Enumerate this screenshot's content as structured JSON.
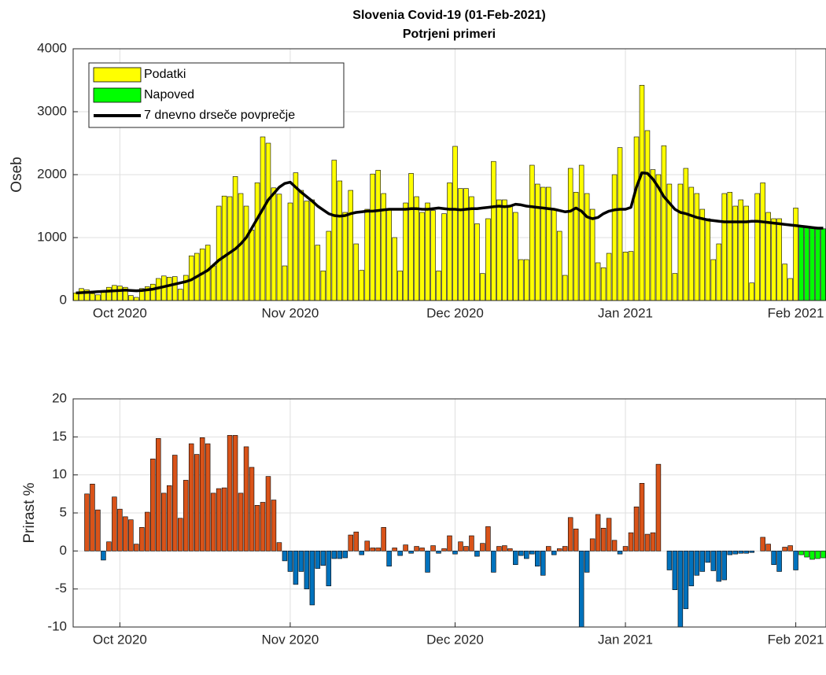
{
  "chart_data": [
    {
      "type": "bar",
      "title": "Slovenia Covid-19 (01-Feb-2021)",
      "subtitle": "Potrjeni primeri",
      "ylabel": "Oseb",
      "categories": [
        null,
        null,
        null,
        null,
        null,
        null,
        null,
        null,
        "Oct 2020",
        null,
        null,
        null,
        null,
        null,
        null,
        null,
        null,
        null,
        null,
        null,
        null,
        null,
        null,
        null,
        null,
        null,
        null,
        null,
        null,
        null,
        null,
        null,
        null,
        null,
        null,
        null,
        null,
        null,
        null,
        "Nov 2020",
        null,
        null,
        null,
        null,
        null,
        null,
        null,
        null,
        null,
        null,
        null,
        null,
        null,
        null,
        null,
        null,
        null,
        null,
        null,
        null,
        null,
        null,
        null,
        null,
        null,
        null,
        null,
        null,
        null,
        "Dec 2020",
        null,
        null,
        null,
        null,
        null,
        null,
        null,
        null,
        null,
        null,
        null,
        null,
        null,
        null,
        null,
        null,
        null,
        null,
        null,
        null,
        null,
        null,
        null,
        null,
        null,
        null,
        null,
        null,
        null,
        null,
        "Jan 2021",
        null,
        null,
        null,
        null,
        null,
        null,
        null,
        null,
        null,
        null,
        null,
        null,
        null,
        null,
        null,
        null,
        null,
        null,
        null,
        null,
        null,
        null,
        null,
        null,
        null,
        null,
        null,
        null,
        null,
        null,
        "Feb 2021",
        null,
        null,
        null,
        null,
        null
      ],
      "series": [
        {
          "name": "Podatki",
          "color": "#FFFF00",
          "values": [
            120,
            190,
            170,
            110,
            90,
            150,
            210,
            240,
            230,
            210,
            80,
            50,
            190,
            220,
            260,
            350,
            390,
            370,
            380,
            180,
            400,
            710,
            750,
            820,
            880,
            550,
            1500,
            1660,
            1650,
            1970,
            1700,
            1500,
            1120,
            1870,
            2600,
            2500,
            1790,
            1690,
            550,
            1550,
            2030,
            1750,
            1580,
            1600,
            880,
            470,
            1100,
            2230,
            1900,
            1400,
            1750,
            900,
            480,
            1450,
            2010,
            2070,
            1700,
            1450,
            1000,
            470,
            1550,
            2020,
            1650,
            1400,
            1550,
            1430,
            470,
            1380,
            1870,
            2450,
            1780,
            1780,
            1650,
            1220,
            430,
            1300,
            2210,
            1600,
            1600,
            1500,
            1400,
            650,
            650,
            2150,
            1850,
            1800,
            1800,
            1450,
            1100,
            400,
            2100,
            1720,
            2150,
            1700,
            1450,
            600,
            520,
            750,
            2000,
            2430,
            770,
            780,
            2600,
            3420,
            2700,
            2080,
            2000,
            2460,
            1850,
            430,
            1850,
            2100,
            1800,
            1700,
            1450,
            1300,
            650,
            900,
            1700,
            1720,
            1500,
            1600,
            1500,
            280,
            1700,
            1870,
            1400,
            1300,
            1300,
            580,
            350,
            1470,
            null,
            null,
            null,
            null,
            null
          ]
        },
        {
          "name": "Napoved",
          "color": "#00FF00",
          "values": [
            null,
            null,
            null,
            null,
            null,
            null,
            null,
            null,
            null,
            null,
            null,
            null,
            null,
            null,
            null,
            null,
            null,
            null,
            null,
            null,
            null,
            null,
            null,
            null,
            null,
            null,
            null,
            null,
            null,
            null,
            null,
            null,
            null,
            null,
            null,
            null,
            null,
            null,
            null,
            null,
            null,
            null,
            null,
            null,
            null,
            null,
            null,
            null,
            null,
            null,
            null,
            null,
            null,
            null,
            null,
            null,
            null,
            null,
            null,
            null,
            null,
            null,
            null,
            null,
            null,
            null,
            null,
            null,
            null,
            null,
            null,
            null,
            null,
            null,
            null,
            null,
            null,
            null,
            null,
            null,
            null,
            null,
            null,
            null,
            null,
            null,
            null,
            null,
            null,
            null,
            null,
            null,
            null,
            null,
            null,
            null,
            null,
            null,
            null,
            null,
            null,
            null,
            null,
            null,
            null,
            null,
            null,
            null,
            null,
            null,
            null,
            null,
            null,
            null,
            null,
            null,
            null,
            null,
            null,
            null,
            null,
            null,
            null,
            null,
            null,
            null,
            null,
            null,
            null,
            null,
            null,
            null,
            1180,
            1170,
            1160,
            1150,
            1140
          ]
        },
        {
          "name": "7 dnevno drseče povprečje",
          "type": "line",
          "color": "#000000",
          "values": [
            120,
            125,
            130,
            135,
            140,
            145,
            150,
            155,
            160,
            165,
            160,
            155,
            160,
            170,
            180,
            200,
            220,
            240,
            260,
            280,
            300,
            330,
            380,
            430,
            480,
            560,
            640,
            700,
            760,
            820,
            900,
            1000,
            1150,
            1300,
            1450,
            1600,
            1700,
            1800,
            1860,
            1880,
            1800,
            1720,
            1650,
            1580,
            1500,
            1440,
            1380,
            1350,
            1340,
            1350,
            1380,
            1400,
            1410,
            1420,
            1420,
            1430,
            1440,
            1450,
            1450,
            1450,
            1450,
            1460,
            1460,
            1450,
            1450,
            1460,
            1470,
            1460,
            1450,
            1450,
            1440,
            1450,
            1460,
            1460,
            1470,
            1480,
            1490,
            1500,
            1490,
            1500,
            1530,
            1520,
            1500,
            1490,
            1480,
            1470,
            1460,
            1450,
            1430,
            1410,
            1420,
            1470,
            1420,
            1330,
            1300,
            1320,
            1380,
            1420,
            1440,
            1450,
            1450,
            1480,
            1800,
            2030,
            2020,
            1930,
            1800,
            1650,
            1550,
            1450,
            1400,
            1380,
            1350,
            1320,
            1300,
            1280,
            1270,
            1260,
            1250,
            1250,
            1250,
            1250,
            1250,
            1260,
            1260,
            1250,
            1240,
            1230,
            1220,
            1210,
            1200,
            1190,
            1180,
            1170,
            1160,
            1150,
            1150
          ]
        }
      ],
      "ylim": [
        0,
        4000
      ],
      "yticks": [
        0,
        1000,
        2000,
        3000,
        4000
      ],
      "grid": true,
      "legend": "northwest"
    },
    {
      "type": "bar",
      "ylabel": "Prirast %",
      "categories": [
        null,
        null,
        null,
        null,
        null,
        null,
        null,
        null,
        "Oct 2020",
        null,
        null,
        null,
        null,
        null,
        null,
        null,
        null,
        null,
        null,
        null,
        null,
        null,
        null,
        null,
        null,
        null,
        null,
        null,
        null,
        null,
        null,
        null,
        null,
        null,
        null,
        null,
        null,
        null,
        null,
        "Nov 2020",
        null,
        null,
        null,
        null,
        null,
        null,
        null,
        null,
        null,
        null,
        null,
        null,
        null,
        null,
        null,
        null,
        null,
        null,
        null,
        null,
        null,
        null,
        null,
        null,
        null,
        null,
        null,
        null,
        null,
        "Dec 2020",
        null,
        null,
        null,
        null,
        null,
        null,
        null,
        null,
        null,
        null,
        null,
        null,
        null,
        null,
        null,
        null,
        null,
        null,
        null,
        null,
        null,
        null,
        null,
        null,
        null,
        null,
        null,
        null,
        null,
        null,
        "Jan 2021",
        null,
        null,
        null,
        null,
        null,
        null,
        null,
        null,
        null,
        null,
        null,
        null,
        null,
        null,
        null,
        null,
        null,
        null,
        null,
        null,
        null,
        null,
        null,
        null,
        null,
        null,
        null,
        null,
        null,
        null,
        "Feb 2021",
        null,
        null,
        null,
        null,
        null
      ],
      "series": [
        {
          "color": "#D95319",
          "negative_color": "#0072BD",
          "values": [
            null,
            null,
            7.5,
            8.8,
            5.4,
            -1.2,
            1.2,
            7.1,
            5.5,
            4.5,
            4.1,
            0.9,
            3.1,
            5.1,
            12.1,
            14.8,
            7.6,
            8.6,
            12.6,
            4.3,
            9.3,
            14.1,
            12.7,
            14.9,
            14.1,
            7.6,
            8.2,
            8.3,
            15.2,
            15.2,
            7.6,
            13.7,
            11.0,
            6.0,
            6.4,
            9.8,
            6.7,
            1.1,
            -1.3,
            -2.7,
            -4.4,
            -2.7,
            -5.0,
            -7.1,
            -2.3,
            -1.9,
            -4.6,
            -1.0,
            -1.0,
            -0.9,
            2.1,
            2.5,
            -0.5,
            1.3,
            0.4,
            0.4,
            3.1,
            -2.0,
            0.4,
            -0.6,
            0.8,
            -0.3,
            0.6,
            0.4,
            -2.8,
            0.7,
            -0.3,
            0.3,
            2.0,
            -0.4,
            1.2,
            0.6,
            2.0,
            -0.7,
            1.0,
            3.2,
            -2.8,
            0.6,
            0.7,
            0.3,
            -1.8,
            -0.6,
            -1.0,
            -0.4,
            -2.0,
            -3.2,
            0.6,
            -0.5,
            0.3,
            0.6,
            4.4,
            2.9,
            -10.2,
            -2.8,
            1.6,
            4.8,
            3.0,
            4.3,
            1.4,
            -0.4,
            0.6,
            2.4,
            5.8,
            8.9,
            2.2,
            2.4,
            11.4,
            0,
            -2.5,
            -5.1,
            -10.0,
            -7.6,
            -4.6,
            -3.2,
            -2.7,
            -1.5,
            -2.6,
            -4.0,
            -3.8,
            -0.5,
            -0.4,
            -0.3,
            -0.3,
            -0.2,
            0.0,
            1.8,
            0.9,
            -1.8,
            -2.7,
            0.5,
            0.7,
            -2.5,
            null,
            null,
            null,
            null,
            null
          ]
        },
        {
          "color": "#00FF00",
          "values": [
            null,
            null,
            null,
            null,
            null,
            null,
            null,
            null,
            null,
            null,
            null,
            null,
            null,
            null,
            null,
            null,
            null,
            null,
            null,
            null,
            null,
            null,
            null,
            null,
            null,
            null,
            null,
            null,
            null,
            null,
            null,
            null,
            null,
            null,
            null,
            null,
            null,
            null,
            null,
            null,
            null,
            null,
            null,
            null,
            null,
            null,
            null,
            null,
            null,
            null,
            null,
            null,
            null,
            null,
            null,
            null,
            null,
            null,
            null,
            null,
            null,
            null,
            null,
            null,
            null,
            null,
            null,
            null,
            null,
            null,
            null,
            null,
            null,
            null,
            null,
            null,
            null,
            null,
            null,
            null,
            null,
            null,
            null,
            null,
            null,
            null,
            null,
            null,
            null,
            null,
            null,
            null,
            null,
            null,
            null,
            null,
            null,
            null,
            null,
            null,
            null,
            null,
            null,
            null,
            null,
            null,
            null,
            null,
            null,
            null,
            null,
            null,
            null,
            null,
            null,
            null,
            null,
            null,
            null,
            null,
            null,
            null,
            null,
            null,
            null,
            null,
            null,
            null,
            null,
            null,
            null,
            null,
            -0.5,
            -0.8,
            -1.1,
            -1.0,
            -0.9
          ]
        }
      ],
      "ylim": [
        -10,
        20
      ],
      "yticks": [
        -10,
        -5,
        0,
        5,
        10,
        15,
        20
      ],
      "grid": true
    }
  ]
}
